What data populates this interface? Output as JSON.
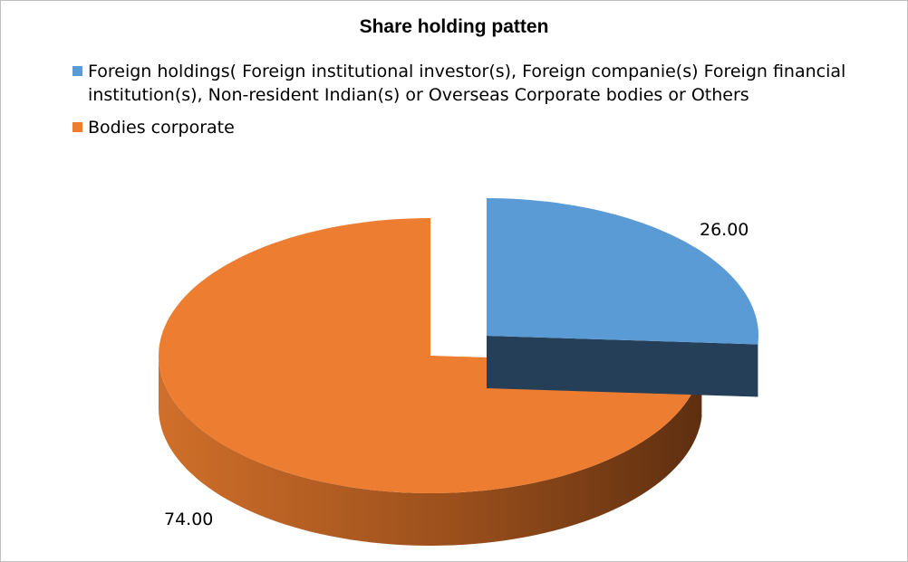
{
  "chart_data": {
    "type": "pie",
    "title": "Share holding patten",
    "series": [
      {
        "name": "Foreign holdings( Foreign institutional investor(s), Foreign companie(s) Foreign financial institution(s), Non-resident Indian(s) or Overseas Corporate bodies or Others",
        "value": 26.0,
        "label": "26.00",
        "color": "#5b9bd5",
        "side_color": "#243f57",
        "exploded": true
      },
      {
        "name": "Bodies corporate",
        "value": 74.0,
        "label": "74.00",
        "color": "#ed7d31",
        "side_color": "#c0621e",
        "exploded": false
      }
    ],
    "style": "3d-pie",
    "legend_position": "top"
  }
}
